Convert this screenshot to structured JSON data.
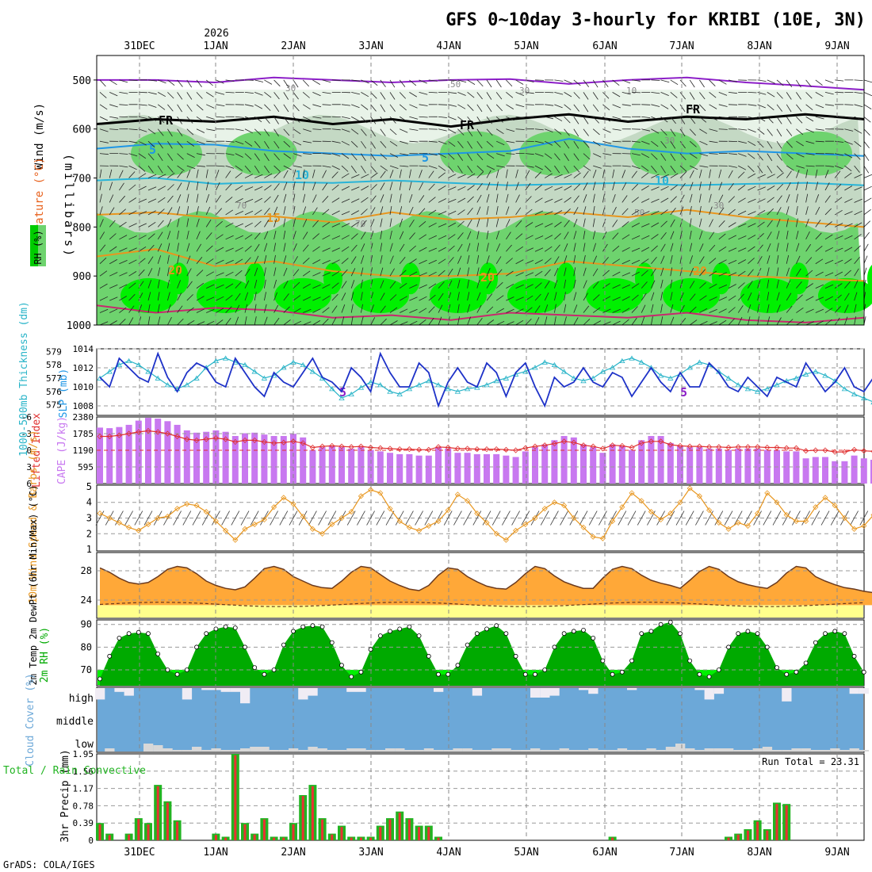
{
  "title": "GFS 0~10day 3-hourly for KRIBI (10E, 3N)",
  "credit": "GrADS: COLA/IGES",
  "year_label": "2026",
  "dates": [
    "31DEC",
    "1JAN",
    "2JAN",
    "3JAN",
    "4JAN",
    "5JAN",
    "6JAN",
    "7JAN",
    "8JAN",
    "9JAN"
  ],
  "colors": {
    "rh_light": "#e8f3e8",
    "rh_mid": "#c4d9c4",
    "rh_green": "#6ed36e",
    "rh_bright": "#00f000",
    "temp_orange": "#e8961e",
    "temp_blue": "#1e96e6",
    "temp_purple": "#8c1ec8",
    "temp_magenta": "#c8286e",
    "slp": "#1e32c8",
    "thickness": "#28b4c8",
    "cape": "#c878f0",
    "lifted": "#e03030",
    "wind": "#e8961e",
    "temp_fill": "#ffa838",
    "temp_top": "#e85a14",
    "dew_fill": "#ffff8c",
    "rh2m_dark": "#00aa00",
    "rh2m_bright": "#00f000",
    "cloud_blue": "#6ca8d8",
    "cloud_light": "#d8d8d8",
    "precip_green": "#22b422",
    "precip_red": "#e83232"
  },
  "chart_data": [
    {
      "panel": "upper-air",
      "type": "heatmap",
      "ylabel": "(millibars)",
      "legend_labels": [
        "Wind (m/s)",
        "Temperature (°C)",
        "RH (%)"
      ],
      "ylim": [
        450,
        1000
      ],
      "yticks": [
        500,
        600,
        700,
        800,
        900,
        1000
      ],
      "contour_labels": [
        "5",
        "5",
        "FR",
        "FR",
        "FR",
        "5",
        "5",
        "10",
        "10",
        "15",
        "20",
        "20",
        "20",
        "30",
        "30",
        "30",
        "70",
        "70",
        "50",
        "10",
        "30",
        "50"
      ],
      "isotherms": [
        {
          "name": "5C-upper",
          "y": [
            500,
            500,
            505,
            495,
            500,
            505,
            500,
            498,
            508,
            500,
            495,
            505,
            512,
            520
          ]
        },
        {
          "name": "freezing",
          "y": [
            590,
            580,
            585,
            575,
            590,
            580,
            595,
            580,
            570,
            585,
            575,
            580,
            570,
            580
          ]
        },
        {
          "name": "5C",
          "y": [
            640,
            630,
            632,
            645,
            650,
            655,
            650,
            645,
            620,
            640,
            650,
            645,
            650,
            655
          ]
        },
        {
          "name": "10C",
          "y": [
            705,
            700,
            712,
            708,
            710,
            705,
            710,
            715,
            712,
            710,
            715,
            712,
            710,
            715
          ]
        },
        {
          "name": "15C",
          "y": [
            775,
            770,
            782,
            778,
            790,
            770,
            785,
            780,
            770,
            780,
            765,
            780,
            790,
            800
          ]
        },
        {
          "name": "20C",
          "y": [
            860,
            845,
            880,
            870,
            890,
            900,
            900,
            895,
            870,
            880,
            890,
            900,
            905,
            910
          ]
        },
        {
          "name": "25C",
          "y": [
            960,
            975,
            965,
            970,
            985,
            980,
            990,
            975,
            980,
            985,
            975,
            990,
            995,
            985
          ]
        }
      ]
    },
    {
      "panel": "slp-thickness",
      "type": "line",
      "ylabel_left": "1000-500mb Thickness (dm)",
      "ylabel_right": "SLP (mb)",
      "thickness_ticks": [
        575,
        576,
        577,
        578,
        579
      ],
      "slp_ticks": [
        1008,
        1010,
        1012,
        1014
      ],
      "slp_ylim": [
        1007,
        1014
      ],
      "slp": [
        1011.0,
        1010.0,
        1013.0,
        1012.0,
        1011.0,
        1010.5,
        1013.5,
        1011.0,
        1009.5,
        1011.5,
        1012.5,
        1012.0,
        1010.5,
        1010.0,
        1013.0,
        1011.5,
        1010.0,
        1009.0,
        1011.5,
        1010.5,
        1010.0,
        1011.5,
        1013.0,
        1011.0,
        1010.5,
        1009.5,
        1012.0,
        1011.0,
        1009.5,
        1013.5,
        1011.5,
        1010.0,
        1010.0,
        1012.5,
        1011.5,
        1008.0,
        1010.5,
        1012.0,
        1010.5,
        1010.0,
        1012.5,
        1011.5,
        1009.0,
        1011.5,
        1012.5,
        1010.0,
        1008.0,
        1011.0,
        1010.0,
        1010.5,
        1012.0,
        1010.5,
        1010.0,
        1011.5,
        1011.0,
        1009.0,
        1010.5,
        1012.0,
        1010.5,
        1009.5,
        1011.5,
        1010.0,
        1010.0,
        1012.5,
        1011.5,
        1010.0,
        1009.5,
        1011.0,
        1010.0,
        1009.0,
        1011.0,
        1010.5,
        1010.0,
        1012.5,
        1011.0,
        1009.5,
        1010.5,
        1012.0,
        1010.0,
        1009.5,
        1011.0,
        1012.5
      ],
      "thickness": [
        577.0,
        577.5,
        578.0,
        578.3,
        578.0,
        577.5,
        577.0,
        576.5,
        576.2,
        576.5,
        577.0,
        577.8,
        578.3,
        578.5,
        578.2,
        578.0,
        577.5,
        577.0,
        577.2,
        577.8,
        578.2,
        578.0,
        577.5,
        577.0,
        576.2,
        575.5,
        575.8,
        576.3,
        576.7,
        576.5,
        576.0,
        575.8,
        576.2,
        576.5,
        576.8,
        576.5,
        576.2,
        576.0,
        576.2,
        576.3,
        576.5,
        576.8,
        577.0,
        577.3,
        577.5,
        577.8,
        578.2,
        578.0,
        577.5,
        577.0,
        576.8,
        577.0,
        577.5,
        577.8,
        578.3,
        578.5,
        578.2,
        577.8,
        577.2,
        577.0,
        577.3,
        577.8,
        578.2,
        578.0,
        577.5,
        577.0,
        576.5,
        576.2,
        576.0,
        576.2,
        576.5,
        576.8,
        577.0,
        577.3,
        577.5,
        577.2,
        576.8,
        576.2,
        575.8,
        575.5,
        575.2,
        574.8
      ]
    },
    {
      "panel": "cape-li",
      "type": "bar",
      "ylabel_left": "Lifted Index",
      "ylabel_right": "CAPE (J/kg)",
      "li_ticks": [
        "-6",
        "-3",
        "0",
        "3",
        "6"
      ],
      "cape_ticks": [
        "595",
        "1190",
        "1785",
        "2380"
      ],
      "cape_ylim": [
        0,
        2380
      ],
      "cape": [
        2000,
        1980,
        2020,
        2100,
        2250,
        2350,
        2320,
        2230,
        2100,
        1900,
        1820,
        1850,
        1900,
        1850,
        1700,
        1800,
        1820,
        1750,
        1700,
        1700,
        1780,
        1650,
        1200,
        1300,
        1350,
        1300,
        1250,
        1300,
        1200,
        1150,
        1100,
        1050,
        1050,
        1000,
        1000,
        1300,
        1250,
        1100,
        1100,
        1050,
        1050,
        1050,
        1000,
        950,
        1150,
        1300,
        1400,
        1550,
        1700,
        1650,
        1400,
        1300,
        1100,
        1400,
        1350,
        1200,
        1550,
        1700,
        1700,
        1450,
        1350,
        1300,
        1300,
        1250,
        1250,
        1200,
        1250,
        1250,
        1250,
        1200,
        1200,
        1150,
        1150,
        900,
        950,
        950,
        800,
        800,
        1000,
        900,
        850,
        800,
        800,
        850,
        650
      ],
      "lifted_index": [
        -2.5,
        -2.5,
        -2.7,
        -3.0,
        -3.3,
        -3.5,
        -3.3,
        -3.0,
        -2.5,
        -2.0,
        -1.8,
        -2.0,
        -2.2,
        -2.0,
        -1.5,
        -1.8,
        -1.8,
        -1.5,
        -1.3,
        -1.4,
        -1.6,
        -1.3,
        -0.5,
        -0.7,
        -0.8,
        -0.7,
        -0.6,
        -0.7,
        -0.5,
        -0.4,
        -0.3,
        -0.2,
        -0.2,
        -0.1,
        -0.1,
        -0.6,
        -0.5,
        -0.3,
        -0.3,
        -0.2,
        -0.2,
        -0.2,
        -0.1,
        0.0,
        -0.4,
        -0.7,
        -0.9,
        -1.2,
        -1.6,
        -1.4,
        -0.9,
        -0.7,
        -0.3,
        -0.9,
        -0.8,
        -0.5,
        -1.3,
        -1.6,
        -1.6,
        -1.0,
        -0.8,
        -0.7,
        -0.7,
        -0.6,
        -0.6,
        -0.5,
        -0.6,
        -0.6,
        -0.6,
        -0.5,
        -0.5,
        -0.4,
        -0.4,
        0.1,
        0.0,
        0.0,
        0.3,
        0.3,
        -0.1,
        0.1,
        0.2,
        0.3,
        0.3,
        0.2,
        0.5
      ]
    },
    {
      "panel": "wind10m",
      "type": "line",
      "ylabel": "10m Wind Speed & Barbs (m/s)",
      "yticks": [
        1,
        2,
        3,
        4,
        5
      ],
      "ylim": [
        1,
        5
      ],
      "values": [
        3.3,
        3.0,
        2.7,
        2.4,
        2.2,
        2.6,
        3.0,
        3.1,
        3.6,
        3.9,
        3.8,
        3.4,
        2.8,
        2.2,
        1.6,
        2.3,
        2.6,
        2.9,
        3.7,
        4.3,
        3.9,
        3.1,
        2.3,
        2.0,
        2.6,
        3.0,
        3.4,
        4.4,
        4.8,
        4.6,
        3.6,
        2.8,
        2.4,
        2.2,
        2.5,
        2.8,
        3.5,
        4.5,
        4.1,
        3.3,
        2.7,
        2.0,
        1.6,
        2.2,
        2.6,
        3.0,
        3.6,
        4.0,
        3.8,
        3.0,
        2.4,
        1.8,
        1.7,
        2.8,
        3.7,
        4.6,
        4.1,
        3.4,
        2.9,
        3.3,
        4.0,
        4.9,
        4.4,
        3.5,
        2.7,
        2.3,
        2.7,
        2.5,
        3.3,
        4.6,
        4.0,
        3.2,
        2.8,
        2.8,
        3.7,
        4.3,
        3.8,
        3.0,
        2.3,
        2.5,
        3.2,
        4.1,
        3.2,
        2.3
      ]
    },
    {
      "panel": "temp2m",
      "type": "area",
      "ylabel": "2m Temp 2m DewPt (6hr Min/Max) (°C)",
      "yticks": [
        24,
        28
      ],
      "ylim": [
        21.5,
        30.5
      ],
      "temp": [
        28.4,
        27.8,
        27.0,
        26.4,
        26.2,
        26.4,
        27.2,
        28.2,
        28.6,
        28.4,
        27.6,
        26.6,
        26.0,
        25.6,
        25.4,
        25.8,
        27.0,
        28.3,
        28.6,
        28.2,
        27.2,
        26.6,
        26.0,
        25.7,
        25.6,
        26.6,
        27.8,
        28.6,
        28.4,
        27.5,
        26.6,
        26.0,
        25.5,
        25.3,
        26.0,
        27.4,
        28.4,
        28.2,
        27.2,
        26.5,
        25.9,
        25.6,
        25.5,
        26.4,
        27.6,
        28.6,
        28.3,
        27.3,
        26.5,
        26.0,
        25.6,
        25.6,
        27.0,
        28.2,
        28.6,
        28.3,
        27.4,
        26.7,
        26.3,
        26.0,
        25.6,
        26.7,
        27.9,
        28.6,
        28.2,
        27.2,
        26.5,
        26.1,
        25.8,
        25.6,
        26.4,
        27.7,
        28.6,
        28.4,
        27.2,
        26.6,
        26.1,
        25.7,
        25.5,
        25.2,
        25.0
      ]
    },
    {
      "panel": "rh2m",
      "type": "area",
      "ylabel": "2m RH (%)",
      "yticks": [
        70,
        80,
        90
      ],
      "ylim": [
        63,
        92
      ],
      "values": [
        66,
        76,
        84,
        86,
        86.5,
        86,
        77,
        70,
        68,
        70,
        80,
        86,
        88,
        89,
        88.5,
        80,
        71,
        68,
        70,
        81,
        87,
        89,
        89.5,
        89,
        82,
        72,
        67,
        69,
        79,
        85,
        87,
        88,
        89,
        85,
        76,
        68,
        68,
        72,
        81,
        86,
        88,
        89.5,
        86,
        76,
        68,
        68,
        70,
        80,
        86,
        87,
        87.5,
        84,
        74,
        68,
        69,
        74,
        86,
        87,
        90,
        91,
        86,
        74,
        68,
        67,
        70,
        80,
        86,
        87,
        86,
        80,
        71,
        68,
        69,
        73,
        82,
        86,
        87,
        86,
        76,
        69
      ]
    },
    {
      "panel": "cloud",
      "type": "bar",
      "ylabel": "Cloud Cover (%)",
      "levels": [
        "high",
        "middle",
        "low"
      ],
      "high": [
        40,
        100,
        80,
        60,
        100,
        100,
        100,
        100,
        100,
        40,
        100,
        90,
        90,
        80,
        80,
        20,
        100,
        100,
        100,
        100,
        100,
        40,
        60,
        100,
        100,
        100,
        80,
        80,
        100,
        100,
        100,
        100,
        100,
        100,
        100,
        80,
        100,
        100,
        100,
        60,
        100,
        100,
        100,
        100,
        100,
        50,
        50,
        60,
        100,
        100,
        90,
        70,
        100,
        100,
        100,
        90,
        100,
        100,
        100,
        100,
        100,
        100,
        90,
        40,
        70,
        100,
        100,
        100,
        100,
        100,
        100,
        30,
        100,
        100,
        100,
        100,
        100,
        100,
        70,
        70
      ],
      "low": [
        0,
        20,
        0,
        0,
        0,
        50,
        40,
        20,
        10,
        10,
        30,
        10,
        20,
        10,
        10,
        20,
        30,
        30,
        10,
        10,
        20,
        10,
        30,
        20,
        10,
        10,
        20,
        20,
        10,
        10,
        20,
        20,
        10,
        10,
        20,
        10,
        10,
        20,
        20,
        10,
        10,
        20,
        20,
        10,
        10,
        20,
        10,
        10,
        20,
        10,
        10,
        20,
        10,
        10,
        20,
        10,
        10,
        20,
        10,
        30,
        50,
        20,
        10,
        20,
        20,
        20,
        10,
        10,
        20,
        30,
        10,
        10,
        20,
        20,
        10,
        10,
        20,
        10,
        20,
        10
      ]
    },
    {
      "panel": "precip",
      "type": "bar",
      "ylabel": "3hr Precip (mm)",
      "legend": "Total / Rain  Convective",
      "run_total_label": "Run Total = 23.31",
      "yticks": [
        "0",
        "0.39",
        "0.78",
        "1.17",
        "1.56",
        "1.95"
      ],
      "ylim": [
        0,
        1.95
      ],
      "total": [
        0.39,
        0.15,
        0.0,
        0.15,
        0.5,
        0.39,
        1.25,
        0.88,
        0.45,
        0.0,
        0.0,
        0.0,
        0.15,
        0.08,
        1.95,
        0.39,
        0.15,
        0.5,
        0.08,
        0.08,
        0.39,
        1.02,
        1.25,
        0.5,
        0.15,
        0.33,
        0.08,
        0.08,
        0.08,
        0.33,
        0.5,
        0.65,
        0.5,
        0.33,
        0.33,
        0.08,
        0.0,
        0.0,
        0.0,
        0.0,
        0.0,
        0.0,
        0.0,
        0.0,
        0.0,
        0.0,
        0.0,
        0.0,
        0.0,
        0.0,
        0.0,
        0.0,
        0.0,
        0.08,
        0.0,
        0.0,
        0.0,
        0.0,
        0.0,
        0.0,
        0.0,
        0.0,
        0.0,
        0.0,
        0.0,
        0.08,
        0.15,
        0.25,
        0.45,
        0.25,
        0.85,
        0.82,
        0.0,
        0.0,
        0.0,
        0.0,
        0.0,
        0.0,
        0.0,
        0.0,
        0.0,
        0.0,
        0.0,
        0.0
      ],
      "convective": [
        0.36,
        0.12,
        0.0,
        0.13,
        0.48,
        0.36,
        1.22,
        0.85,
        0.42,
        0.0,
        0.0,
        0.0,
        0.12,
        0.06,
        1.92,
        0.36,
        0.13,
        0.47,
        0.06,
        0.06,
        0.36,
        1.0,
        1.22,
        0.47,
        0.13,
        0.3,
        0.06,
        0.06,
        0.06,
        0.3,
        0.47,
        0.62,
        0.47,
        0.3,
        0.3,
        0.06,
        0.0,
        0.0,
        0.0,
        0.0,
        0.0,
        0.0,
        0.0,
        0.0,
        0.0,
        0.0,
        0.0,
        0.0,
        0.0,
        0.0,
        0.0,
        0.0,
        0.0,
        0.06,
        0.0,
        0.0,
        0.0,
        0.0,
        0.0,
        0.0,
        0.0,
        0.0,
        0.0,
        0.0,
        0.0,
        0.06,
        0.13,
        0.22,
        0.42,
        0.22,
        0.82,
        0.79,
        0.0,
        0.0,
        0.0,
        0.0,
        0.0,
        0.0,
        0.0,
        0.0,
        0.0,
        0.0,
        0.0,
        0.0
      ]
    }
  ]
}
